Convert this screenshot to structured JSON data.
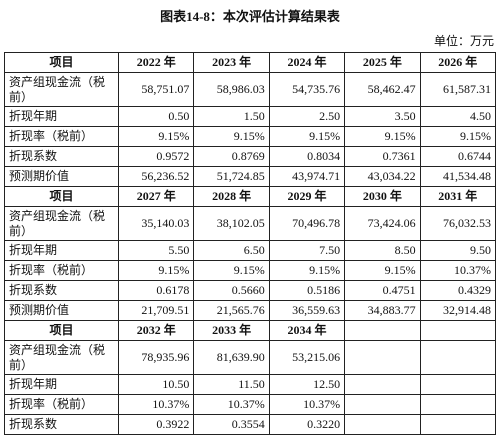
{
  "title": "图表14-8：本次评估计算结果表",
  "unit": "单位：万元",
  "blocks": [
    {
      "header": [
        "项目",
        "2022 年",
        "2023 年",
        "2024 年",
        "2025 年",
        "2026 年"
      ],
      "rows": [
        {
          "label": "资产组现金流（税前）",
          "values": [
            "58,751.07",
            "58,986.03",
            "54,735.76",
            "58,462.47",
            "61,587.31"
          ]
        },
        {
          "label": "折现年期",
          "values": [
            "0.50",
            "1.50",
            "2.50",
            "3.50",
            "4.50"
          ]
        },
        {
          "label": "折现率（税前）",
          "values": [
            "9.15%",
            "9.15%",
            "9.15%",
            "9.15%",
            "9.15%"
          ]
        },
        {
          "label": "折现系数",
          "values": [
            "0.9572",
            "0.8769",
            "0.8034",
            "0.7361",
            "0.6744"
          ]
        },
        {
          "label": "预测期价值",
          "values": [
            "56,236.52",
            "51,724.85",
            "43,974.71",
            "43,034.22",
            "41,534.48"
          ]
        }
      ]
    },
    {
      "header": [
        "项目",
        "2027 年",
        "2028 年",
        "2029 年",
        "2030 年",
        "2031 年"
      ],
      "rows": [
        {
          "label": "资产组现金流（税前）",
          "values": [
            "35,140.03",
            "38,102.05",
            "70,496.78",
            "73,424.06",
            "76,032.53"
          ]
        },
        {
          "label": "折现年期",
          "values": [
            "5.50",
            "6.50",
            "7.50",
            "8.50",
            "9.50"
          ]
        },
        {
          "label": "折现率（税前）",
          "values": [
            "9.15%",
            "9.15%",
            "9.15%",
            "9.15%",
            "10.37%"
          ]
        },
        {
          "label": "折现系数",
          "values": [
            "0.6178",
            "0.5660",
            "0.5186",
            "0.4751",
            "0.4329"
          ]
        },
        {
          "label": "预测期价值",
          "values": [
            "21,709.51",
            "21,565.76",
            "36,559.63",
            "34,883.77",
            "32,914.48"
          ]
        }
      ]
    },
    {
      "header": [
        "项目",
        "2032 年",
        "2033 年",
        "2034 年"
      ],
      "rows": [
        {
          "label": "资产组现金流（税前）",
          "values": [
            "78,935.96",
            "81,639.90",
            "53,215.06"
          ]
        },
        {
          "label": "折现年期",
          "values": [
            "10.50",
            "11.50",
            "12.50"
          ]
        },
        {
          "label": "折现率（税前）",
          "values": [
            "10.37%",
            "10.37%",
            "10.37%"
          ]
        },
        {
          "label": "折现系数",
          "values": [
            "0.3922",
            "0.3554",
            "0.3220"
          ]
        }
      ]
    }
  ]
}
